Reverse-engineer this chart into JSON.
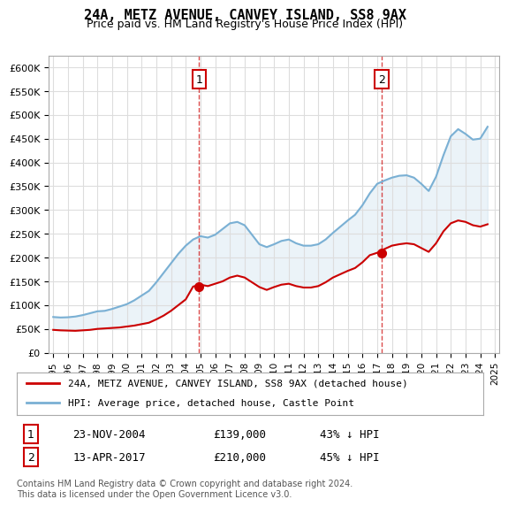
{
  "title": "24A, METZ AVENUE, CANVEY ISLAND, SS8 9AX",
  "subtitle": "Price paid vs. HM Land Registry's House Price Index (HPI)",
  "ylabel": "",
  "hpi_color": "#7ab0d4",
  "price_color": "#cc0000",
  "marker_color": "#cc0000",
  "background_color": "#ffffff",
  "grid_color": "#dddddd",
  "annotation_box_color": "#cc0000",
  "ylim": [
    0,
    625000
  ],
  "yticks": [
    0,
    50000,
    100000,
    150000,
    200000,
    250000,
    300000,
    350000,
    400000,
    450000,
    500000,
    550000,
    600000
  ],
  "ytick_labels": [
    "£0",
    "£50K",
    "£100K",
    "£150K",
    "£200K",
    "£250K",
    "£300K",
    "£350K",
    "£400K",
    "£450K",
    "£500K",
    "£550K",
    "£600K"
  ],
  "sale1_date_label": "23-NOV-2004",
  "sale1_price": 139000,
  "sale1_price_label": "£139,000",
  "sale1_pct_label": "43% ↓ HPI",
  "sale2_date_label": "13-APR-2017",
  "sale2_price": 210000,
  "sale2_price_label": "£210,000",
  "sale2_pct_label": "45% ↓ HPI",
  "legend_line1": "24A, METZ AVENUE, CANVEY ISLAND, SS8 9AX (detached house)",
  "legend_line2": "HPI: Average price, detached house, Castle Point",
  "footnote": "Contains HM Land Registry data © Crown copyright and database right 2024.\nThis data is licensed under the Open Government Licence v3.0.",
  "hpi_x": [
    1995.0,
    1995.5,
    1996.0,
    1996.5,
    1997.0,
    1997.5,
    1998.0,
    1998.5,
    1999.0,
    1999.5,
    2000.0,
    2000.5,
    2001.0,
    2001.5,
    2002.0,
    2002.5,
    2003.0,
    2003.5,
    2004.0,
    2004.5,
    2005.0,
    2005.5,
    2006.0,
    2006.5,
    2007.0,
    2007.5,
    2008.0,
    2008.5,
    2009.0,
    2009.5,
    2010.0,
    2010.5,
    2011.0,
    2011.5,
    2012.0,
    2012.5,
    2013.0,
    2013.5,
    2014.0,
    2014.5,
    2015.0,
    2015.5,
    2016.0,
    2016.5,
    2017.0,
    2017.5,
    2018.0,
    2018.5,
    2019.0,
    2019.5,
    2020.0,
    2020.5,
    2021.0,
    2021.5,
    2022.0,
    2022.5,
    2023.0,
    2023.5,
    2024.0,
    2024.5
  ],
  "hpi_y": [
    75000,
    74000,
    74500,
    76000,
    79000,
    83000,
    87000,
    88000,
    92000,
    97000,
    102000,
    110000,
    120000,
    130000,
    148000,
    168000,
    188000,
    208000,
    225000,
    238000,
    245000,
    242000,
    248000,
    260000,
    272000,
    275000,
    268000,
    248000,
    228000,
    222000,
    228000,
    235000,
    238000,
    230000,
    225000,
    225000,
    228000,
    238000,
    252000,
    265000,
    278000,
    290000,
    310000,
    335000,
    355000,
    362000,
    368000,
    372000,
    373000,
    368000,
    355000,
    340000,
    370000,
    415000,
    455000,
    470000,
    460000,
    448000,
    450000,
    475000
  ],
  "price_x": [
    1995.0,
    1995.5,
    1996.0,
    1996.5,
    1997.0,
    1997.5,
    1998.0,
    1998.5,
    1999.0,
    1999.5,
    2000.0,
    2000.5,
    2001.0,
    2001.5,
    2002.0,
    2002.5,
    2003.0,
    2003.5,
    2004.0,
    2004.5,
    2005.0,
    2005.5,
    2006.0,
    2006.5,
    2007.0,
    2007.5,
    2008.0,
    2008.5,
    2009.0,
    2009.5,
    2010.0,
    2010.5,
    2011.0,
    2011.5,
    2012.0,
    2012.5,
    2013.0,
    2013.5,
    2014.0,
    2014.5,
    2015.0,
    2015.5,
    2016.0,
    2016.5,
    2017.0,
    2017.5,
    2018.0,
    2018.5,
    2019.0,
    2019.5,
    2020.0,
    2020.5,
    2021.0,
    2021.5,
    2022.0,
    2022.5,
    2023.0,
    2023.5,
    2024.0,
    2024.5
  ],
  "price_y": [
    48000,
    47000,
    46500,
    46000,
    47000,
    48000,
    50000,
    51000,
    52000,
    53000,
    55000,
    57000,
    60000,
    63000,
    70000,
    78000,
    88000,
    100000,
    112000,
    139000,
    143000,
    140000,
    145000,
    150000,
    158000,
    162000,
    158000,
    148000,
    138000,
    132000,
    138000,
    143000,
    145000,
    140000,
    137000,
    137000,
    140000,
    148000,
    158000,
    165000,
    172000,
    178000,
    190000,
    205000,
    210000,
    218000,
    225000,
    228000,
    230000,
    228000,
    220000,
    212000,
    230000,
    255000,
    272000,
    278000,
    275000,
    268000,
    265000,
    270000
  ],
  "sale1_x": 2004.9,
  "sale2_x": 2017.3,
  "xlim_left": 1994.7,
  "xlim_right": 2025.3
}
